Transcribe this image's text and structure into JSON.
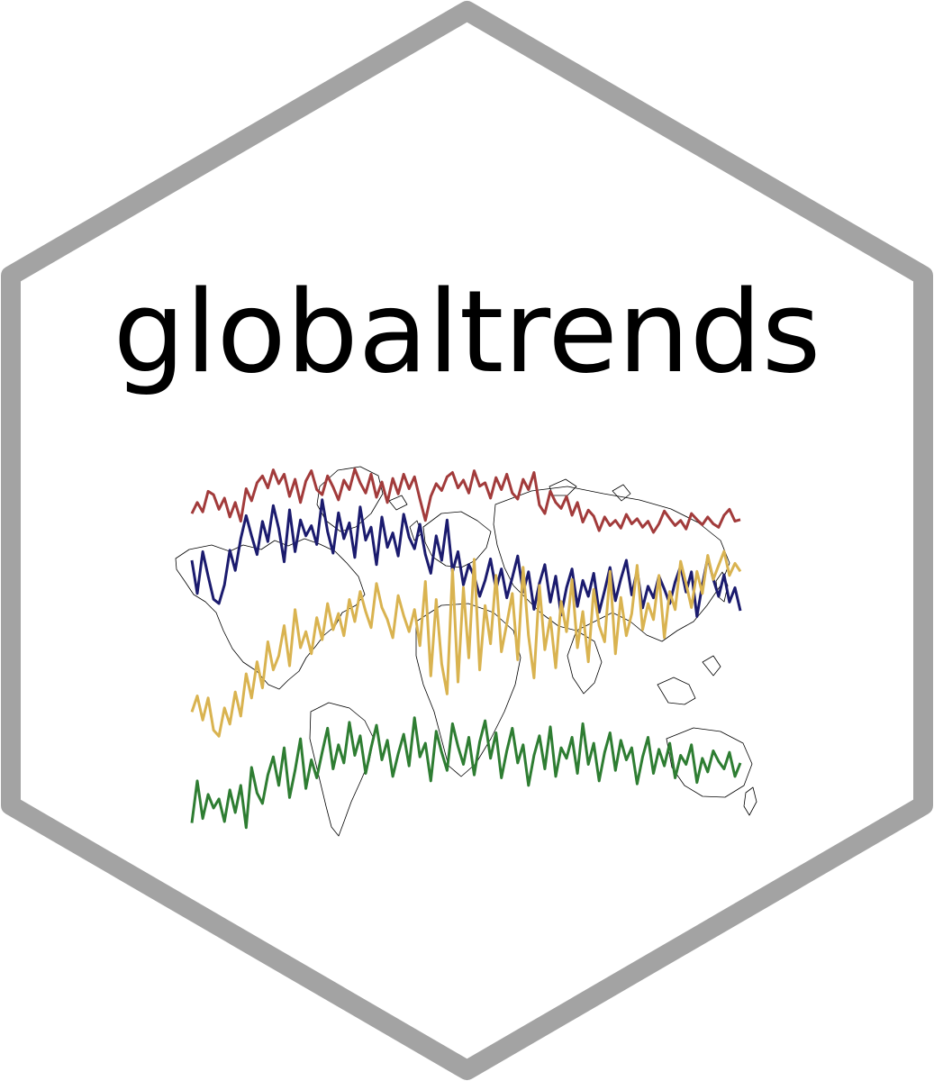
{
  "logo": {
    "title": "globaltrends",
    "border_color": "#a3a3a3",
    "background_color": "#ffffff",
    "text_color": "#000000",
    "map_stroke_color": "#000000"
  },
  "sparklines": [
    {
      "color": "#a23b3b",
      "values": [
        0.42,
        0.55,
        0.44,
        0.68,
        0.64,
        0.47,
        0.6,
        0.38,
        0.55,
        0.33,
        0.71,
        0.57,
        0.78,
        0.86,
        0.72,
        0.93,
        0.77,
        0.88,
        0.62,
        0.82,
        0.55,
        0.8,
        0.92,
        0.7,
        0.64,
        0.86,
        0.73,
        0.58,
        0.81,
        0.7,
        0.94,
        0.78,
        0.66,
        0.88,
        0.61,
        0.79,
        0.55,
        0.83,
        0.65,
        0.88,
        0.71,
        0.85,
        0.59,
        0.34,
        0.62,
        0.77,
        0.69,
        0.85,
        0.9,
        0.72,
        0.81,
        0.66,
        0.92,
        0.74,
        0.78,
        0.6,
        0.84,
        0.7,
        0.88,
        0.66,
        0.59,
        0.82,
        0.7,
        0.9,
        0.52,
        0.42,
        0.68,
        0.55,
        0.48,
        0.62,
        0.4,
        0.55,
        0.32,
        0.46,
        0.39,
        0.22,
        0.38,
        0.28,
        0.34,
        0.25,
        0.41,
        0.3,
        0.36,
        0.26,
        0.33,
        0.2,
        0.3,
        0.45,
        0.36,
        0.28,
        0.34,
        0.24,
        0.42,
        0.35,
        0.29,
        0.38,
        0.3,
        0.26,
        0.4,
        0.47,
        0.33,
        0.35
      ]
    },
    {
      "color": "#1b1b6e",
      "values": [
        0.55,
        0.32,
        0.61,
        0.44,
        0.28,
        0.25,
        0.38,
        0.62,
        0.48,
        0.7,
        0.86,
        0.72,
        0.59,
        0.82,
        0.68,
        0.93,
        0.77,
        0.54,
        0.9,
        0.61,
        0.83,
        0.72,
        0.79,
        0.66,
        0.97,
        0.75,
        0.6,
        0.88,
        0.7,
        0.81,
        0.57,
        0.92,
        0.69,
        0.78,
        0.52,
        0.85,
        0.64,
        0.74,
        0.58,
        0.87,
        0.71,
        0.63,
        0.8,
        0.59,
        0.46,
        0.72,
        0.55,
        0.83,
        0.47,
        0.61,
        0.38,
        0.52,
        0.44,
        0.3,
        0.41,
        0.56,
        0.35,
        0.49,
        0.29,
        0.43,
        0.58,
        0.33,
        0.47,
        0.21,
        0.39,
        0.52,
        0.26,
        0.44,
        0.17,
        0.36,
        0.49,
        0.23,
        0.41,
        0.3,
        0.46,
        0.19,
        0.34,
        0.5,
        0.27,
        0.42,
        0.55,
        0.31,
        0.48,
        0.22,
        0.37,
        0.29,
        0.44,
        0.35,
        0.25,
        0.4,
        0.51,
        0.33,
        0.47,
        0.16,
        0.38,
        0.57,
        0.42,
        0.3,
        0.45,
        0.26,
        0.36,
        0.2
      ]
    },
    {
      "color": "#d9b350",
      "values": [
        0.2,
        0.28,
        0.16,
        0.27,
        0.11,
        0.08,
        0.22,
        0.14,
        0.3,
        0.18,
        0.39,
        0.27,
        0.45,
        0.32,
        0.55,
        0.41,
        0.48,
        0.63,
        0.43,
        0.71,
        0.52,
        0.6,
        0.49,
        0.67,
        0.56,
        0.74,
        0.61,
        0.69,
        0.58,
        0.76,
        0.65,
        0.8,
        0.7,
        0.62,
        0.84,
        0.72,
        0.66,
        0.57,
        0.78,
        0.68,
        0.6,
        0.71,
        0.53,
        0.85,
        0.38,
        0.76,
        0.44,
        0.29,
        0.91,
        0.35,
        0.82,
        0.47,
        0.96,
        0.41,
        0.73,
        0.54,
        0.88,
        0.5,
        0.64,
        0.79,
        0.46,
        0.92,
        0.58,
        0.37,
        0.83,
        0.51,
        0.67,
        0.42,
        0.75,
        0.6,
        0.86,
        0.52,
        0.7,
        0.45,
        0.81,
        0.63,
        0.55,
        0.9,
        0.49,
        0.77,
        0.58,
        0.69,
        0.93,
        0.61,
        0.74,
        0.66,
        0.88,
        0.57,
        0.8,
        0.71,
        0.95,
        0.84,
        0.72,
        0.9,
        0.79,
        0.98,
        0.86,
        0.93,
        1.0,
        0.88,
        0.94,
        0.9
      ]
    },
    {
      "color": "#2e7d32",
      "values": [
        0.05,
        0.33,
        0.08,
        0.24,
        0.15,
        0.21,
        0.06,
        0.27,
        0.12,
        0.3,
        0.02,
        0.42,
        0.25,
        0.18,
        0.37,
        0.49,
        0.3,
        0.55,
        0.22,
        0.4,
        0.61,
        0.28,
        0.47,
        0.35,
        0.52,
        0.68,
        0.41,
        0.57,
        0.45,
        0.72,
        0.5,
        0.63,
        0.38,
        0.55,
        0.7,
        0.47,
        0.6,
        0.36,
        0.51,
        0.64,
        0.43,
        0.75,
        0.49,
        0.58,
        0.33,
        0.66,
        0.52,
        0.4,
        0.71,
        0.56,
        0.44,
        0.62,
        0.37,
        0.59,
        0.73,
        0.48,
        0.65,
        0.35,
        0.53,
        0.68,
        0.45,
        0.57,
        0.3,
        0.5,
        0.63,
        0.41,
        0.69,
        0.36,
        0.55,
        0.48,
        0.62,
        0.38,
        0.71,
        0.44,
        0.58,
        0.33,
        0.52,
        0.65,
        0.4,
        0.6,
        0.47,
        0.55,
        0.31,
        0.49,
        0.62,
        0.38,
        0.54,
        0.43,
        0.58,
        0.35,
        0.5,
        0.44,
        0.57,
        0.32,
        0.48,
        0.39,
        0.53,
        0.46,
        0.41,
        0.52,
        0.36,
        0.45
      ]
    }
  ]
}
